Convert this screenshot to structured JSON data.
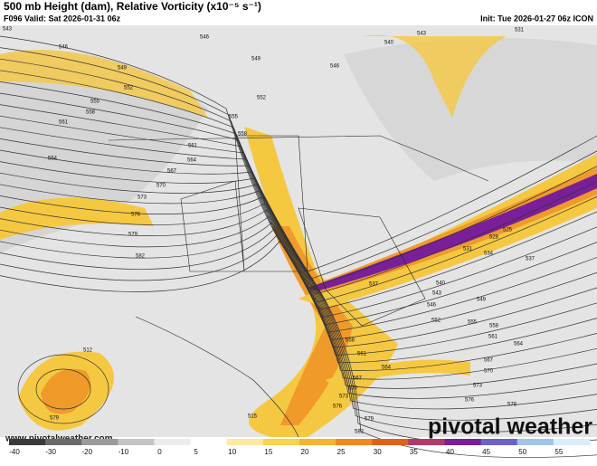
{
  "header": {
    "title": "500 mb Height (dam), Relative Vorticity (x10⁻⁵ s⁻¹)",
    "valid": "F096 Valid: Sat 2026-01-31 06z",
    "init": "Init: Tue 2026-01-27 06z ICON"
  },
  "map": {
    "contour_labels": [
      "543",
      "546",
      "549",
      "552",
      "555",
      "558",
      "561",
      "564",
      "567",
      "570",
      "573",
      "576",
      "579",
      "582",
      "546",
      "549",
      "552",
      "555",
      "558",
      "561",
      "564",
      "540",
      "543",
      "546",
      "531",
      "537",
      "540",
      "543",
      "546",
      "549",
      "552",
      "555",
      "558",
      "561",
      "564",
      "567",
      "570",
      "573",
      "576",
      "579",
      "582",
      "579",
      "576",
      "573",
      "570",
      "567",
      "564",
      "561",
      "558",
      "512",
      "579",
      "515",
      "537",
      "534",
      "531",
      "528",
      "525"
    ],
    "watermark": "www.pivotalweather.com",
    "logo": "pivotal weather"
  },
  "colorbar": {
    "ticks": [
      "-40",
      "-30",
      "-20",
      "-10",
      "0",
      "5",
      "10",
      "15",
      "20",
      "25",
      "30",
      "35",
      "40",
      "45",
      "50",
      "55"
    ]
  }
}
